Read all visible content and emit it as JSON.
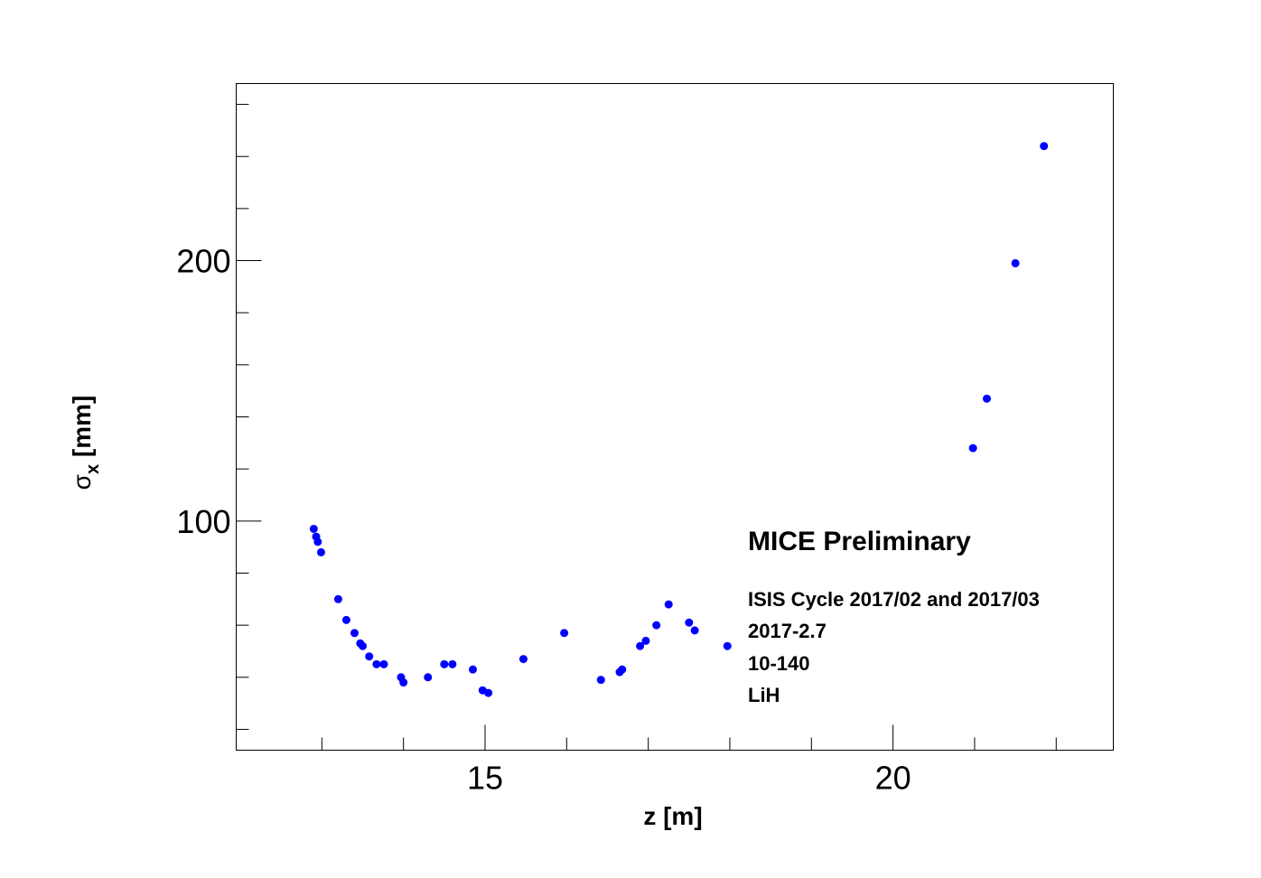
{
  "chart_data": {
    "type": "scatter",
    "xlabel": "z [m]",
    "ylabel_main": "σ",
    "ylabel_sub": "x",
    "ylabel_unit": " [mm]",
    "xlim": [
      11.95,
      22.7
    ],
    "ylim": [
      12,
      268
    ],
    "x_major_ticks": [
      15,
      20
    ],
    "x_tick_labels": [
      "15",
      "20"
    ],
    "x_minor_ticks": [
      13,
      14,
      16,
      17,
      18,
      19,
      21,
      22
    ],
    "y_major_ticks": [
      100,
      200
    ],
    "y_tick_labels": [
      "100",
      "200"
    ],
    "y_minor_ticks": [
      20,
      40,
      60,
      80,
      120,
      140,
      160,
      180,
      220,
      240,
      260
    ],
    "grid": false,
    "marker_color": "#0000ff",
    "series": [
      {
        "x": [
          12.9,
          12.93,
          12.95,
          12.99,
          13.2,
          13.3,
          13.4,
          13.47,
          13.5,
          13.58,
          13.67,
          13.76,
          13.97,
          14.0,
          14.3,
          14.5,
          14.6,
          14.85,
          14.97,
          15.04,
          15.47,
          15.97,
          16.42,
          16.65,
          16.68,
          16.9,
          16.97,
          17.1,
          17.25,
          17.5,
          17.57,
          17.97,
          20.98,
          21.15,
          21.5,
          21.85
        ],
        "y": [
          97,
          94,
          92,
          88,
          70,
          62,
          57,
          53,
          52,
          48,
          45,
          45,
          40,
          38,
          40,
          45,
          45,
          43,
          35,
          34,
          47,
          57,
          39,
          42,
          43,
          52,
          54,
          60,
          68,
          61,
          58,
          52,
          128,
          147,
          199,
          244
        ]
      }
    ],
    "annotations": {
      "title": "MICE Preliminary",
      "line1": "ISIS Cycle 2017/02 and 2017/03",
      "line2": "2017-2.7",
      "line3": "10-140",
      "line4": "LiH"
    }
  }
}
